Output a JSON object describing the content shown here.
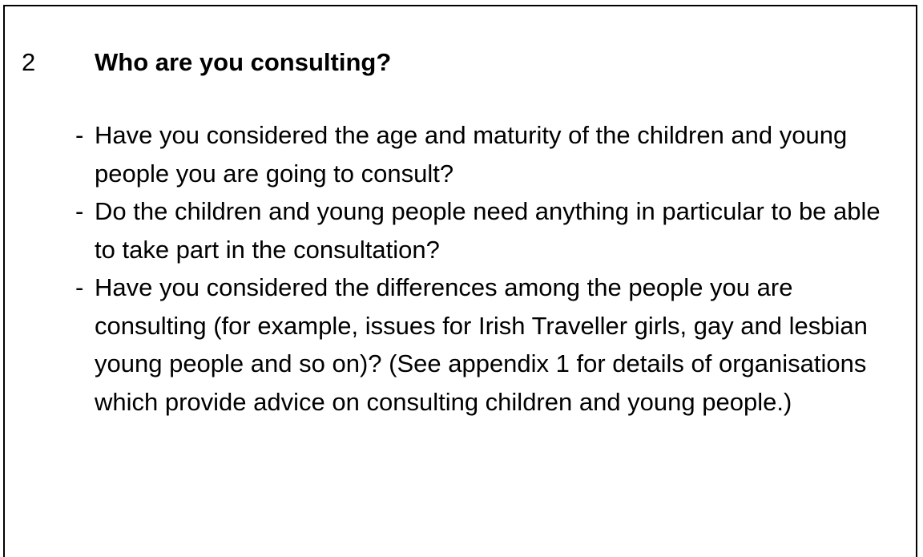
{
  "section": {
    "number": "2",
    "heading": "Who are you consulting?",
    "items": [
      "Have you considered the age and maturity of the children and young people you are going to consult?",
      "Do the children and young people need anything in particular to be able to take part in the consultation?",
      "Have you considered the differences among the people you are consulting (for example, issues for Irish Traveller girls, gay and lesbian young people and so on)? (See appendix 1 for details of organisations which provide advice on consulting children and young people.)"
    ]
  }
}
